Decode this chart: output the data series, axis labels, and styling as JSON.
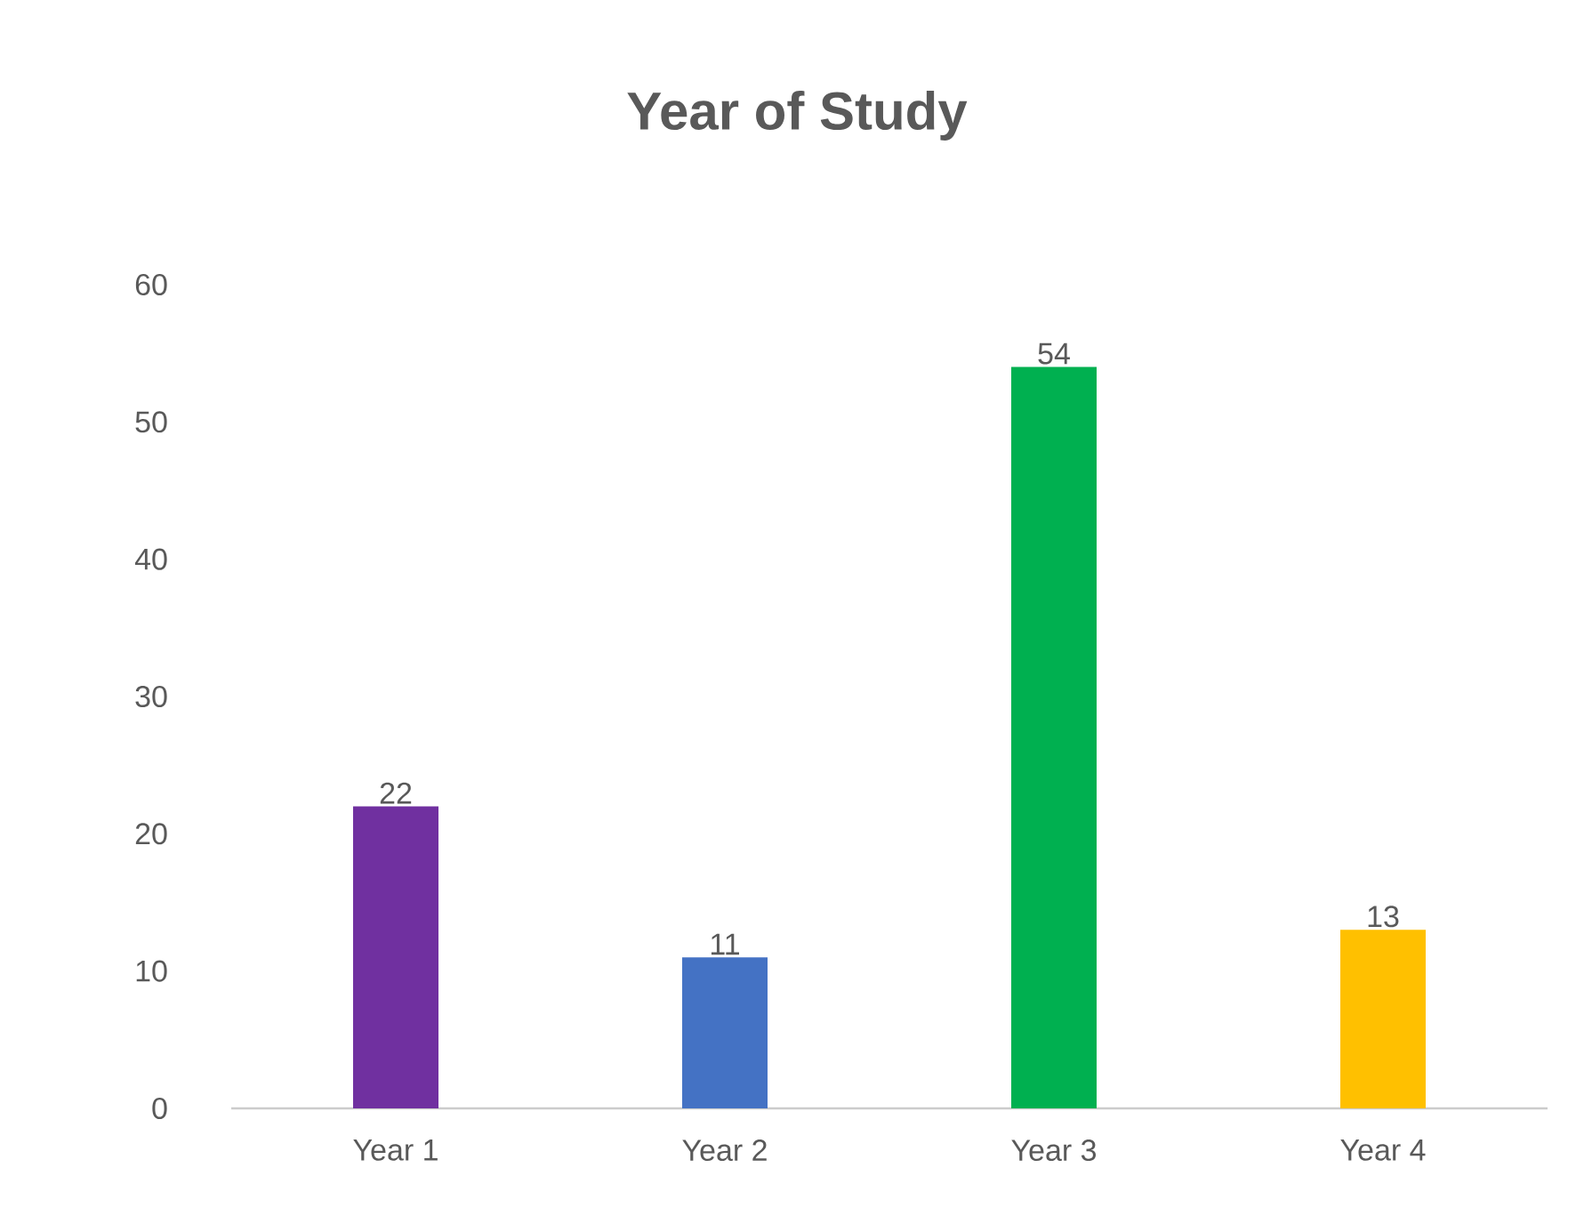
{
  "chart_data": {
    "type": "bar",
    "title": "Year of Study",
    "categories": [
      "Year 1",
      "Year 2",
      "Year 3",
      "Year 4"
    ],
    "values": [
      22,
      11,
      54,
      13
    ],
    "colors": [
      "#7030a0",
      "#4472c4",
      "#00b050",
      "#ffc000"
    ],
    "ylim": [
      0,
      60
    ],
    "yticks": [
      0,
      10,
      20,
      30,
      40,
      50,
      60
    ],
    "data_labels": true
  }
}
